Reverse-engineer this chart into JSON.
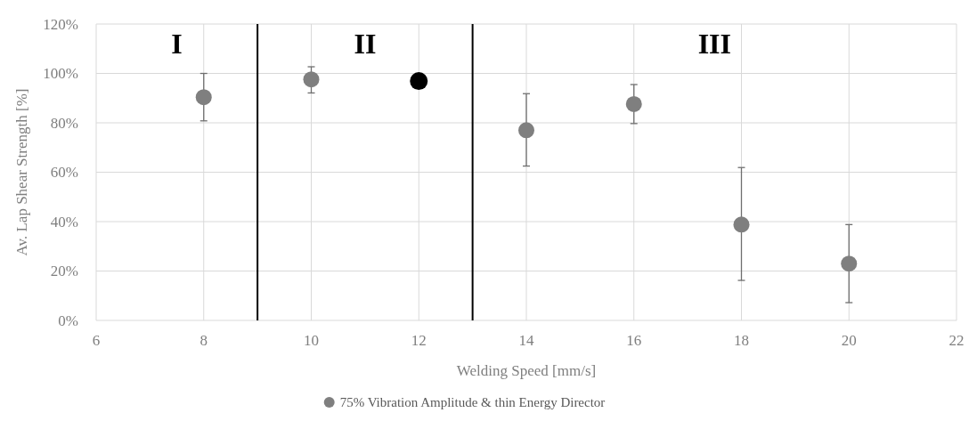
{
  "chart_data": {
    "type": "scatter",
    "xlabel": "Welding Speed [mm/s]",
    "ylabel": "Av. Lap Shear Strength [%]",
    "xlim": [
      6,
      22
    ],
    "xticks": [
      6,
      8,
      10,
      12,
      14,
      16,
      18,
      20,
      22
    ],
    "ylim": [
      0,
      120
    ],
    "yticks": [
      {
        "value": 0,
        "label": "0%"
      },
      {
        "value": 20,
        "label": "20%"
      },
      {
        "value": 40,
        "label": "40%"
      },
      {
        "value": 60,
        "label": "60%"
      },
      {
        "value": 80,
        "label": "80%"
      },
      {
        "value": 100,
        "label": "100%"
      },
      {
        "value": 120,
        "label": "120%"
      }
    ],
    "series": [
      {
        "name": "75% Vibration Amplitude & thin Energy Director",
        "color": "#7f7f7f",
        "x": [
          8,
          10,
          14,
          16,
          18,
          20
        ],
        "values": [
          90.4,
          97.6,
          77,
          87.6,
          38.8,
          23
        ],
        "errors": [
          [
            80.8,
            100
          ],
          [
            92.1,
            102.7
          ],
          [
            62.5,
            91.8
          ],
          [
            79.7,
            95.5
          ],
          [
            16.2,
            61.9
          ],
          [
            7.2,
            38.8
          ]
        ]
      },
      {
        "color": "#000000",
        "x": [
          12
        ],
        "values": [
          96.9
        ]
      }
    ],
    "ref_lines": [
      {
        "axis": "x",
        "value": 9,
        "color": "#000000"
      },
      {
        "axis": "x",
        "value": 13,
        "color": "#000000"
      }
    ],
    "annotations": [
      "I",
      "II",
      "III"
    ],
    "grid": true,
    "legend": "bottom",
    "marker": "circle"
  }
}
